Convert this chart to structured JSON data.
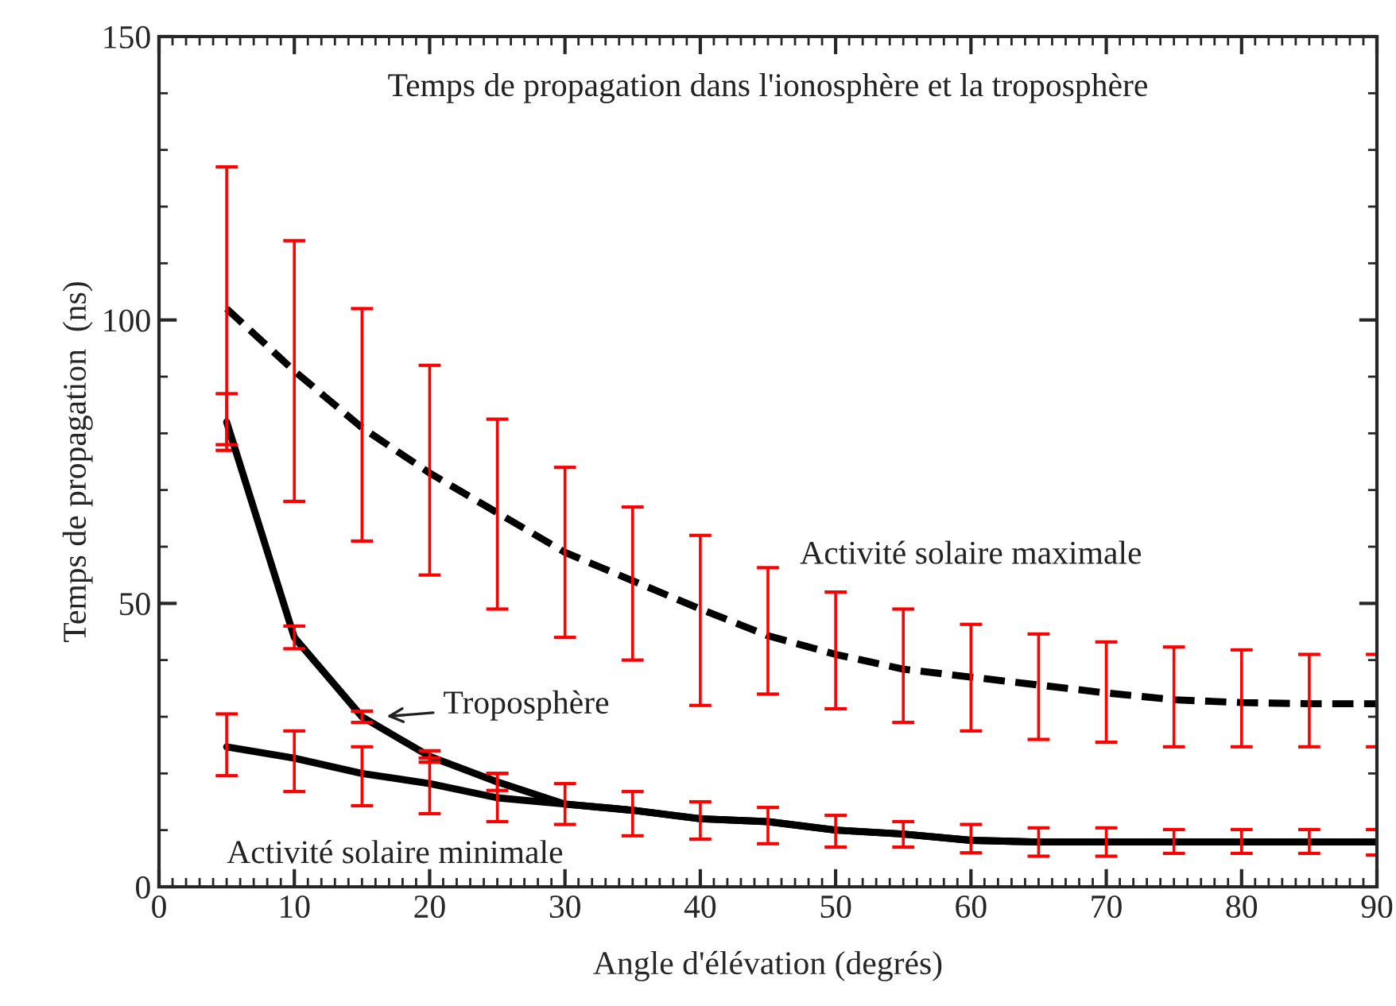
{
  "chart_data": {
    "type": "line",
    "title": "Temps de propagation dans l'ionosphère et la troposphère",
    "xlabel": "Angle d'élévation (degrés)",
    "ylabel": "Temps de propagation  (ns)",
    "x": [
      5,
      10,
      15,
      20,
      25,
      30,
      35,
      40,
      45,
      50,
      55,
      60,
      65,
      70,
      75,
      80,
      85,
      90
    ],
    "series": [
      {
        "name": "Activité solaire maximale",
        "color": "#000000",
        "line_style": "dashed",
        "values": [
          102,
          91,
          81,
          73,
          66,
          59,
          54,
          49,
          44.3,
          41,
          38.4,
          37,
          35.6,
          34.2,
          33,
          32.5,
          32.3,
          32.3
        ],
        "errors": [
          [
            77,
            127
          ],
          [
            68,
            114
          ],
          [
            61,
            102
          ],
          [
            55,
            92
          ],
          [
            49,
            82.5
          ],
          [
            44,
            74
          ],
          [
            40,
            67
          ],
          [
            32,
            62
          ],
          [
            34,
            56.3
          ],
          [
            31.4,
            52
          ],
          [
            29,
            49
          ],
          [
            27.5,
            46.3
          ],
          [
            26,
            44.6
          ],
          [
            25.5,
            43.2
          ],
          [
            24.7,
            42.3
          ],
          [
            24.7,
            41.8
          ],
          [
            24.7,
            41
          ],
          [
            24.7,
            41
          ]
        ]
      },
      {
        "name": "Troposphère",
        "color": "#000000",
        "line_style": "solid",
        "values": [
          82,
          44,
          30,
          23,
          18.5,
          14.6,
          13.5,
          12,
          11.5,
          10,
          9.3,
          8.2,
          7.9,
          7.9,
          7.9,
          7.9,
          7.9,
          7.9
        ],
        "errors": [
          [
            78,
            87
          ],
          [
            42,
            46
          ],
          [
            29,
            31
          ],
          [
            22,
            24
          ],
          [
            17,
            20
          ],
          null,
          null,
          null,
          null,
          null,
          null,
          null,
          null,
          null,
          null,
          null,
          null,
          null
        ]
      },
      {
        "name": "Activité solaire minimale",
        "color": "#000000",
        "line_style": "solid",
        "values": [
          24.7,
          22.7,
          20,
          18.2,
          15.7,
          14.6,
          13.5,
          12,
          11.5,
          10,
          9.3,
          8.2,
          7.9,
          7.9,
          7.9,
          7.9,
          7.9,
          7.9
        ],
        "errors": [
          [
            19.6,
            30.5
          ],
          [
            16.8,
            27.5
          ],
          [
            14.3,
            24.7
          ],
          [
            12.9,
            22.7
          ],
          [
            11.5,
            20
          ],
          [
            11,
            18.2
          ],
          [
            9,
            16.8
          ],
          [
            8.4,
            15
          ],
          [
            7.6,
            14
          ],
          [
            7,
            12.6
          ],
          [
            7,
            11.5
          ],
          [
            6,
            11
          ],
          [
            5.4,
            10.4
          ],
          [
            5.4,
            10.4
          ],
          [
            5.9,
            10.1
          ],
          [
            5.9,
            10.1
          ],
          [
            5.9,
            10.1
          ],
          [
            5.6,
            10.1
          ]
        ]
      }
    ],
    "xlim": [
      0,
      90
    ],
    "xticks": [
      0,
      10,
      20,
      30,
      40,
      50,
      60,
      70,
      80,
      90
    ],
    "ylim": [
      0,
      150
    ],
    "yticks": [
      0,
      50,
      100,
      150
    ],
    "grid": false,
    "legend": false,
    "marker": "none"
  }
}
